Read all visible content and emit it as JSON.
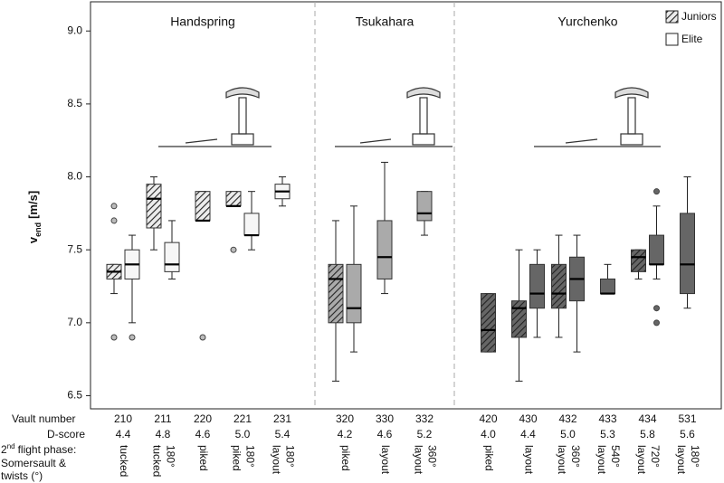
{
  "chart_data": {
    "type": "box",
    "y_label": {
      "main": "v",
      "sub": "end",
      "unit": "[m/s]"
    },
    "row_labels": {
      "vault": "Vault number",
      "d_score": "D-score",
      "phase_number": "2",
      "phase_sup": "nd",
      "phase_first": "flight phase:",
      "phase_lines": [
        "Somersault &",
        "twists (°)"
      ]
    },
    "ylim": [
      6.41,
      9.2
    ],
    "yticks": [
      6.5,
      {
        "value": 7,
        "label": "7.0"
      },
      7.5,
      {
        "value": 8,
        "label": "8.0"
      },
      8.5,
      {
        "value": 9,
        "label": "9.0"
      }
    ],
    "legend": "upper right",
    "series": [
      {
        "name": "Juniors",
        "hatched": true
      },
      {
        "name": "Elite",
        "hatched": false
      }
    ],
    "groups": [
      {
        "name": "Handspring",
        "color": "#ececec",
        "vaults": [
          {
            "number": "210",
            "d_score": "4.4",
            "phase": [
              "tucked"
            ],
            "boxes": [
              {
                "min": 7.2,
                "q1": 7.3,
                "median": 7.35,
                "q3": 7.4,
                "max": 7.4,
                "outliers": [
                  6.9,
                  7.7,
                  7.8
                ]
              },
              {
                "min": 7.0,
                "q1": 7.3,
                "median": 7.4,
                "q3": 7.5,
                "max": 7.6,
                "outliers": [
                  6.9
                ]
              }
            ]
          },
          {
            "number": "211",
            "d_score": "4.8",
            "phase": [
              "tucked",
              "180°"
            ],
            "boxes": [
              {
                "min": 7.5,
                "q1": 7.65,
                "median": 7.85,
                "q3": 7.95,
                "max": 8.0,
                "outliers": []
              },
              {
                "min": 7.3,
                "q1": 7.35,
                "median": 7.4,
                "q3": 7.55,
                "max": 7.7,
                "outliers": []
              }
            ]
          },
          {
            "number": "220",
            "d_score": "4.6",
            "phase": [
              "piked"
            ],
            "boxes": [
              {
                "min": 7.7,
                "q1": 7.7,
                "median": 7.7,
                "q3": 7.9,
                "max": 7.9,
                "outliers": [
                  6.9
                ]
              },
              null
            ]
          },
          {
            "number": "221",
            "d_score": "5.0",
            "phase": [
              "piked",
              "180°"
            ],
            "boxes": [
              {
                "min": 7.8,
                "q1": 7.8,
                "median": 7.8,
                "q3": 7.9,
                "max": 7.9,
                "outliers": [
                  7.5
                ]
              },
              {
                "min": 7.5,
                "q1": 7.6,
                "median": 7.6,
                "q3": 7.75,
                "max": 7.9,
                "outliers": []
              }
            ]
          },
          {
            "number": "231",
            "d_score": "5.4",
            "phase": [
              "layout",
              "180°"
            ],
            "boxes": [
              null,
              {
                "min": 7.8,
                "q1": 7.85,
                "median": 7.9,
                "q3": 7.95,
                "max": 8.0,
                "outliers": []
              }
            ]
          }
        ]
      },
      {
        "name": "Tsukahara",
        "color": "#aaaaaa",
        "vaults": [
          {
            "number": "320",
            "d_score": "4.2",
            "phase": [
              "piked"
            ],
            "boxes": [
              {
                "min": 6.6,
                "q1": 7.0,
                "median": 7.3,
                "q3": 7.4,
                "max": 7.7,
                "outliers": []
              },
              {
                "min": 6.8,
                "q1": 7.0,
                "median": 7.1,
                "q3": 7.4,
                "max": 7.8,
                "outliers": []
              }
            ]
          },
          {
            "number": "330",
            "d_score": "4.6",
            "phase": [
              "layout"
            ],
            "boxes": [
              null,
              {
                "min": 7.2,
                "q1": 7.3,
                "median": 7.45,
                "q3": 7.7,
                "max": 8.1,
                "outliers": []
              }
            ]
          },
          {
            "number": "332",
            "d_score": "5.2",
            "phase": [
              "layout",
              "360°"
            ],
            "boxes": [
              null,
              {
                "min": 7.6,
                "q1": 7.7,
                "median": 7.75,
                "q3": 7.9,
                "max": 7.9,
                "outliers": []
              }
            ]
          }
        ]
      },
      {
        "name": "Yurchenko",
        "color": "#666666",
        "vaults": [
          {
            "number": "420",
            "d_score": "4.0",
            "phase": [
              "piked"
            ],
            "boxes": [
              {
                "min": 6.8,
                "q1": 6.8,
                "median": 6.95,
                "q3": 7.2,
                "max": 7.2,
                "outliers": []
              },
              null
            ]
          },
          {
            "number": "430",
            "d_score": "4.4",
            "phase": [
              "layout"
            ],
            "boxes": [
              {
                "min": 6.6,
                "q1": 6.9,
                "median": 7.1,
                "q3": 7.15,
                "max": 7.5,
                "outliers": []
              },
              {
                "min": 6.9,
                "q1": 7.1,
                "median": 7.2,
                "q3": 7.4,
                "max": 7.5,
                "outliers": []
              }
            ]
          },
          {
            "number": "432",
            "d_score": "5.0",
            "phase": [
              "layout",
              "360°"
            ],
            "boxes": [
              {
                "min": 6.9,
                "q1": 7.1,
                "median": 7.2,
                "q3": 7.4,
                "max": 7.6,
                "outliers": []
              },
              {
                "min": 6.8,
                "q1": 7.15,
                "median": 7.3,
                "q3": 7.45,
                "max": 7.6,
                "outliers": []
              }
            ]
          },
          {
            "number": "433",
            "d_score": "5.3",
            "phase": [
              "layout",
              "540°"
            ],
            "boxes": [
              null,
              {
                "min": 7.2,
                "q1": 7.2,
                "median": 7.2,
                "q3": 7.3,
                "max": 7.4,
                "outliers": []
              }
            ]
          },
          {
            "number": "434",
            "d_score": "5.8",
            "phase": [
              "layout",
              "720°"
            ],
            "boxes": [
              {
                "min": 7.3,
                "q1": 7.35,
                "median": 7.45,
                "q3": 7.5,
                "max": 7.5,
                "outliers": []
              },
              {
                "min": 7.3,
                "q1": 7.4,
                "median": 7.4,
                "q3": 7.6,
                "max": 7.8,
                "outliers": [
                  7.9,
                  7.1,
                  7.0
                ]
              }
            ]
          },
          {
            "number": "531",
            "d_score": "5.6",
            "phase": [
              "layout",
              "180°"
            ],
            "boxes": [
              null,
              {
                "min": 7.1,
                "q1": 7.2,
                "median": 7.4,
                "q3": 7.75,
                "max": 8.0,
                "outliers": []
              }
            ]
          }
        ]
      }
    ]
  }
}
